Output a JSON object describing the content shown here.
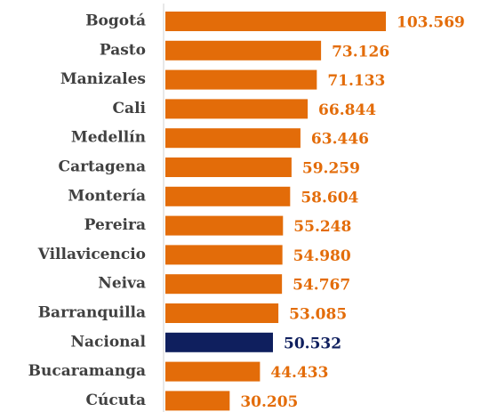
{
  "chart_data": {
    "type": "bar",
    "orientation": "horizontal",
    "categories": [
      "Bogotá",
      "Pasto",
      "Manizales",
      "Cali",
      "Medellín",
      "Cartagena",
      "Montería",
      "Pereira",
      "Villavicencio",
      "Neiva",
      "Barranquilla",
      "Nacional",
      "Bucaramanga",
      "Cúcuta"
    ],
    "values": [
      103569,
      73126,
      71133,
      66844,
      63446,
      59259,
      58604,
      55248,
      54980,
      54767,
      53085,
      50532,
      44433,
      30205
    ],
    "value_labels": [
      "103.569",
      "73.126",
      "71.133",
      "66.844",
      "63.446",
      "59.259",
      "58.604",
      "55.248",
      "54.980",
      "54.767",
      "53.085",
      "50.532",
      "44.433",
      "30.205"
    ],
    "colors": [
      "#e36c09",
      "#e36c09",
      "#e36c09",
      "#e36c09",
      "#e36c09",
      "#e36c09",
      "#e36c09",
      "#e36c09",
      "#e36c09",
      "#e36c09",
      "#e36c09",
      "#0f1f5e",
      "#e36c09",
      "#e36c09"
    ]
  }
}
